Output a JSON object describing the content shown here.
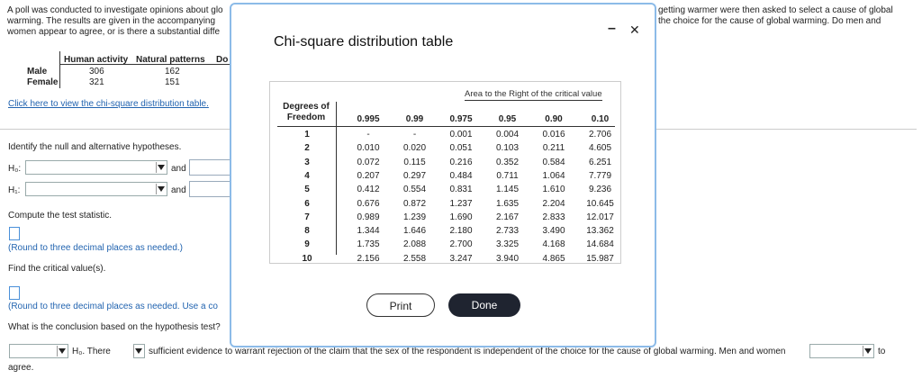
{
  "problem": {
    "left_lines": [
      "A poll was conducted to investigate opinions about glo",
      "warming. The results are given in the accompanying",
      "women appear to agree, or is there a substantial diffe"
    ],
    "right_lines": [
      "getting warmer were then asked to select a cause of global",
      "the choice for the cause of global warming. Do men and"
    ]
  },
  "data_table": {
    "headers": [
      "Human activity",
      "Natural patterns",
      "Do"
    ],
    "rows": [
      [
        "Male",
        "306",
        "162"
      ],
      [
        "Female",
        "321",
        "151"
      ]
    ]
  },
  "link": "Click here to view the chi-square distribution table.",
  "questions": {
    "identify": "Identify the null and alternative hypotheses.",
    "h0_label": "H₀:",
    "h1_label": "H₁:",
    "and": "and",
    "compute": "Compute the test statistic.",
    "round1": "(Round to three decimal places as needed.)",
    "critical": "Find the critical value(s).",
    "round2": "(Round to three decimal places as needed. Use a co",
    "conclusion": "What is the conclusion based on the hypothesis test?",
    "h0_there": "H₀. There",
    "sentence": "sufficient evidence to warrant rejection of the claim that the sex of the respondent is independent of the choice for the cause of global warming. Men and women",
    "to": "to",
    "agree": "agree."
  },
  "modal": {
    "title": "Chi-square distribution table",
    "minimize": "–",
    "close": "✕",
    "area_header": "Area to the Right of the critical value",
    "df_header": "Degrees of Freedom",
    "columns": [
      "0.995",
      "0.99",
      "0.975",
      "0.95",
      "0.90",
      "0.10"
    ],
    "rows": [
      [
        "1",
        "-",
        "-",
        "0.001",
        "0.004",
        "0.016",
        "2.706"
      ],
      [
        "2",
        "0.010",
        "0.020",
        "0.051",
        "0.103",
        "0.211",
        "4.605"
      ],
      [
        "3",
        "0.072",
        "0.115",
        "0.216",
        "0.352",
        "0.584",
        "6.251"
      ],
      [
        "4",
        "0.207",
        "0.297",
        "0.484",
        "0.711",
        "1.064",
        "7.779"
      ],
      [
        "5",
        "0.412",
        "0.554",
        "0.831",
        "1.145",
        "1.610",
        "9.236"
      ],
      [
        "6",
        "0.676",
        "0.872",
        "1.237",
        "1.635",
        "2.204",
        "10.645"
      ],
      [
        "7",
        "0.989",
        "1.239",
        "1.690",
        "2.167",
        "2.833",
        "12.017"
      ],
      [
        "8",
        "1.344",
        "1.646",
        "2.180",
        "2.733",
        "3.490",
        "13.362"
      ],
      [
        "9",
        "1.735",
        "2.088",
        "2.700",
        "3.325",
        "4.168",
        "14.684"
      ],
      [
        "10",
        "2.156",
        "2.558",
        "3.247",
        "3.940",
        "4.865",
        "15.987"
      ]
    ],
    "buttons": {
      "print": "Print",
      "done": "Done"
    }
  }
}
